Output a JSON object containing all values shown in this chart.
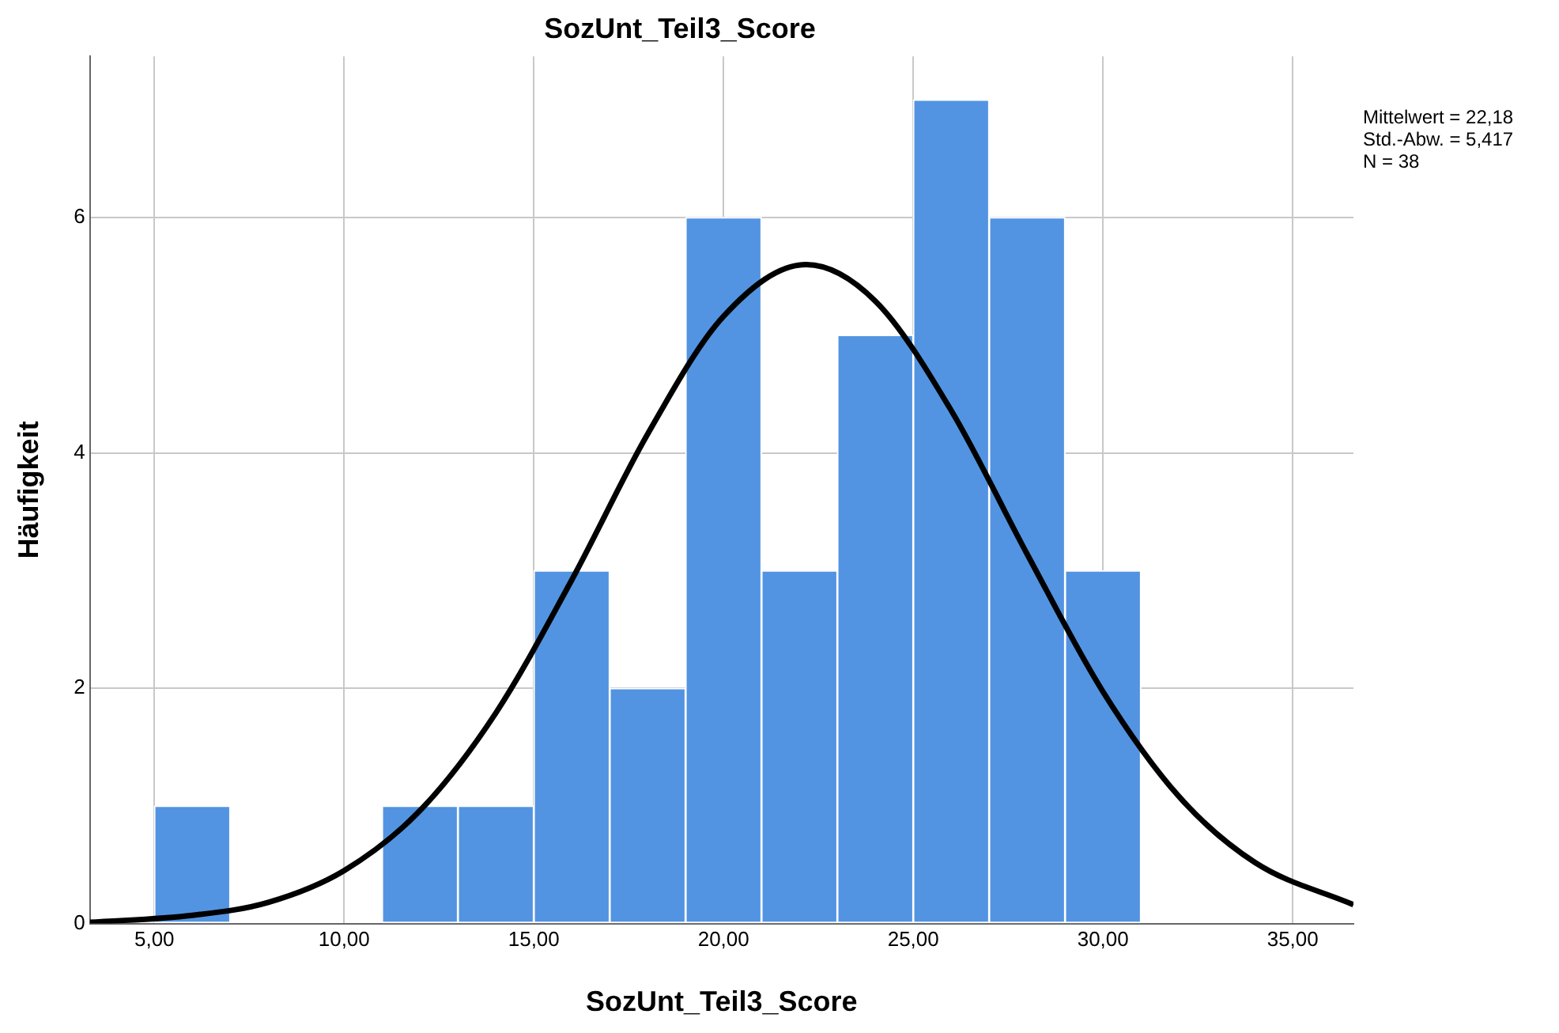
{
  "chart_data": {
    "type": "histogram",
    "title": "SozUnt_Teil3_Score",
    "xlabel": "SozUnt_Teil3_Score",
    "ylabel": "Häufigkeit",
    "bins": [
      5,
      7,
      9,
      11,
      13,
      15,
      17,
      19,
      21,
      23,
      25,
      27,
      29,
      31
    ],
    "values": [
      1,
      0,
      0,
      1,
      1,
      3,
      2,
      6,
      3,
      5,
      7,
      6,
      3
    ],
    "color": "#5294e2",
    "series": [
      {
        "type": "line",
        "color": "#000000",
        "x": [
          3.3,
          6,
          8,
          10,
          12,
          14,
          16,
          18,
          20,
          22.18,
          24,
          26,
          28,
          30,
          32,
          34,
          36.6
        ],
        "values": [
          0.01,
          0.07,
          0.18,
          0.45,
          0.96,
          1.79,
          2.92,
          4.16,
          5.16,
          5.6,
          5.29,
          4.36,
          3.14,
          1.97,
          1.08,
          0.52,
          0.16
        ]
      }
    ],
    "xlim": [
      3.3,
      36.6
    ],
    "xticks": [
      {
        "value": 5,
        "label": "5,00"
      },
      {
        "value": 10,
        "label": "10,00"
      },
      {
        "value": 15,
        "label": "15,00"
      },
      {
        "value": 20,
        "label": "20,00"
      },
      {
        "value": 25,
        "label": "25,00"
      },
      {
        "value": 30,
        "label": "30,00"
      },
      {
        "value": 35,
        "label": "35,00"
      }
    ],
    "ylim": [
      0,
      7.37
    ],
    "yticks": [
      0,
      2,
      4,
      6
    ],
    "grid": true,
    "legend": false,
    "marker": "none",
    "line_style": "solid",
    "annotations": [
      "Mittelwert = 22,18",
      "Std.-Abw. = 5,417",
      "N = 38"
    ]
  }
}
